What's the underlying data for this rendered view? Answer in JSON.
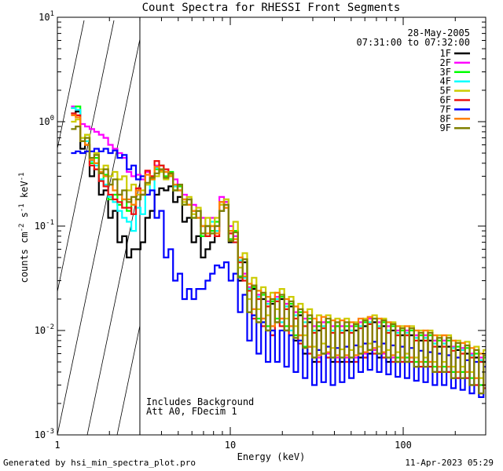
{
  "footer": {
    "generated_by": "Generated by hsi_min_spectra_plot.pro",
    "timestamp": "11-Apr-2023 05:29"
  },
  "chart_data": {
    "type": "line",
    "title": "Count Spectra for RHESSI Front Segments",
    "xlabel": "Energy (keV)",
    "ylabel_parts": {
      "a": "counts cm",
      "b": "-2",
      "c": " s",
      "d": "-1",
      "e": " keV",
      "f": "-1"
    },
    "xscale": "log",
    "yscale": "log",
    "xlim": [
      1,
      300
    ],
    "ylim": [
      0.001,
      10
    ],
    "x_ticks": [
      {
        "value": 1,
        "label": "1"
      },
      {
        "value": 10,
        "label": "10"
      },
      {
        "value": 100,
        "label": "100"
      }
    ],
    "y_ticks": [
      {
        "value": 0.001,
        "base": "10",
        "exp": "-3"
      },
      {
        "value": 0.01,
        "base": "10",
        "exp": "-2"
      },
      {
        "value": 0.1,
        "base": "10",
        "exp": "-1"
      },
      {
        "value": 1,
        "base": "10",
        "exp": "0"
      },
      {
        "value": 10,
        "base": "10",
        "exp": "1"
      }
    ],
    "hatched_region": [
      1,
      3
    ],
    "date": "28-May-2005",
    "time_range": "07:31:00 to 07:32:00",
    "annotations": [
      "Includes Background",
      "Att A0, FDecim 1"
    ],
    "legend_position": "top-right",
    "series": [
      {
        "name": "1F",
        "color": "#000000",
        "lo": [
          1.2,
          0.55,
          0.3,
          0.2,
          0.12,
          0.07,
          0.05,
          0.06,
          0.12,
          0.2,
          0.22,
          0.17,
          0.11,
          0.07,
          0.05,
          0.07,
          0.14,
          0.07,
          0.03,
          0.015,
          0.012,
          0.01,
          0.012,
          0.01,
          0.008,
          0.006,
          0.005,
          0.006,
          0.005,
          0.005,
          0.005,
          0.0055,
          0.006,
          0.0055,
          0.005,
          0.005,
          0.005,
          0.0045,
          0.0045,
          0.004,
          0.004,
          0.0035,
          0.0035,
          0.003,
          0.0025
        ],
        "hi": [
          1.25,
          0.6,
          0.35,
          0.22,
          0.14,
          0.08,
          0.06,
          0.07,
          0.14,
          0.23,
          0.24,
          0.19,
          0.12,
          0.08,
          0.06,
          0.09,
          0.17,
          0.09,
          0.045,
          0.025,
          0.02,
          0.018,
          0.02,
          0.017,
          0.014,
          0.012,
          0.01,
          0.012,
          0.011,
          0.01,
          0.01,
          0.011,
          0.012,
          0.011,
          0.01,
          0.009,
          0.009,
          0.008,
          0.008,
          0.007,
          0.007,
          0.0065,
          0.006,
          0.0055,
          0.005
        ]
      },
      {
        "name": "2F",
        "color": "#ff00ff",
        "lo": [
          1.3,
          0.9,
          0.8,
          0.7,
          0.55,
          0.45,
          0.3,
          0.28,
          0.3,
          0.35,
          0.32,
          0.25,
          0.18,
          0.14,
          0.1,
          0.1,
          0.17,
          0.08,
          0.035,
          0.016,
          0.013,
          0.011,
          0.013,
          0.011,
          0.009,
          0.007,
          0.0055,
          0.006,
          0.0055,
          0.0055,
          0.0055,
          0.006,
          0.0065,
          0.006,
          0.0055,
          0.0055,
          0.0055,
          0.005,
          0.005,
          0.0045,
          0.0045,
          0.004,
          0.004,
          0.0035,
          0.003
        ],
        "hi": [
          1.4,
          0.95,
          0.85,
          0.75,
          0.6,
          0.5,
          0.33,
          0.31,
          0.33,
          0.38,
          0.35,
          0.28,
          0.2,
          0.16,
          0.12,
          0.12,
          0.19,
          0.1,
          0.05,
          0.026,
          0.022,
          0.019,
          0.021,
          0.018,
          0.015,
          0.013,
          0.011,
          0.012,
          0.011,
          0.011,
          0.011,
          0.012,
          0.013,
          0.012,
          0.011,
          0.01,
          0.01,
          0.009,
          0.009,
          0.008,
          0.008,
          0.007,
          0.0068,
          0.006,
          0.0055
        ]
      },
      {
        "name": "3F",
        "color": "#00ff00",
        "lo": [
          1.35,
          0.7,
          0.4,
          0.28,
          0.18,
          0.16,
          0.14,
          0.18,
          0.25,
          0.35,
          0.3,
          0.22,
          0.16,
          0.12,
          0.08,
          0.09,
          0.16,
          0.075,
          0.033,
          0.015,
          0.013,
          0.011,
          0.013,
          0.011,
          0.009,
          0.007,
          0.0055,
          0.006,
          0.0055,
          0.0055,
          0.0055,
          0.006,
          0.0065,
          0.006,
          0.0055,
          0.0055,
          0.0055,
          0.005,
          0.005,
          0.0045,
          0.0045,
          0.004,
          0.004,
          0.0035,
          0.003
        ],
        "hi": [
          1.4,
          0.75,
          0.45,
          0.31,
          0.2,
          0.18,
          0.16,
          0.2,
          0.28,
          0.38,
          0.33,
          0.24,
          0.18,
          0.14,
          0.1,
          0.11,
          0.18,
          0.09,
          0.048,
          0.026,
          0.022,
          0.019,
          0.021,
          0.018,
          0.015,
          0.013,
          0.011,
          0.012,
          0.011,
          0.011,
          0.011,
          0.012,
          0.013,
          0.012,
          0.011,
          0.01,
          0.01,
          0.009,
          0.009,
          0.008,
          0.008,
          0.007,
          0.0068,
          0.006,
          0.0055
        ]
      },
      {
        "name": "4F",
        "color": "#00ffff",
        "lo": [
          1.3,
          0.65,
          0.38,
          0.25,
          0.17,
          0.12,
          0.09,
          0.13,
          0.22,
          0.33,
          0.3,
          0.22,
          0.16,
          0.12,
          0.08,
          0.09,
          0.15,
          0.07,
          0.032,
          0.014,
          0.012,
          0.01,
          0.012,
          0.01,
          0.008,
          0.006,
          0.005,
          0.0055,
          0.005,
          0.005,
          0.005,
          0.0055,
          0.006,
          0.0055,
          0.005,
          0.005,
          0.005,
          0.0045,
          0.0045,
          0.004,
          0.004,
          0.0035,
          0.0035,
          0.003,
          0.0028
        ],
        "hi": [
          1.35,
          0.7,
          0.42,
          0.28,
          0.19,
          0.14,
          0.11,
          0.15,
          0.25,
          0.36,
          0.33,
          0.24,
          0.18,
          0.14,
          0.1,
          0.11,
          0.17,
          0.085,
          0.047,
          0.025,
          0.021,
          0.018,
          0.02,
          0.017,
          0.014,
          0.012,
          0.01,
          0.011,
          0.01,
          0.01,
          0.01,
          0.011,
          0.012,
          0.011,
          0.01,
          0.0095,
          0.0095,
          0.0085,
          0.0085,
          0.0075,
          0.0075,
          0.0068,
          0.0065,
          0.0058,
          0.0052
        ]
      },
      {
        "name": "5F",
        "color": "#cccc00",
        "lo": [
          1.0,
          0.7,
          0.45,
          0.35,
          0.3,
          0.28,
          0.22,
          0.2,
          0.25,
          0.3,
          0.28,
          0.22,
          0.17,
          0.13,
          0.1,
          0.1,
          0.16,
          0.09,
          0.04,
          0.02,
          0.016,
          0.014,
          0.016,
          0.013,
          0.011,
          0.009,
          0.007,
          0.0075,
          0.0068,
          0.0066,
          0.0065,
          0.007,
          0.0075,
          0.007,
          0.0065,
          0.0062,
          0.006,
          0.0055,
          0.0055,
          0.005,
          0.005,
          0.0045,
          0.0045,
          0.004,
          0.0035
        ],
        "hi": [
          1.05,
          0.75,
          0.5,
          0.38,
          0.33,
          0.3,
          0.25,
          0.22,
          0.28,
          0.33,
          0.31,
          0.25,
          0.19,
          0.15,
          0.12,
          0.12,
          0.18,
          0.11,
          0.055,
          0.032,
          0.026,
          0.023,
          0.025,
          0.021,
          0.018,
          0.016,
          0.014,
          0.014,
          0.013,
          0.013,
          0.012,
          0.013,
          0.014,
          0.013,
          0.012,
          0.011,
          0.011,
          0.01,
          0.01,
          0.009,
          0.009,
          0.008,
          0.0078,
          0.007,
          0.0065
        ]
      },
      {
        "name": "6F",
        "color": "#ee1111",
        "lo": [
          1.15,
          0.6,
          0.35,
          0.24,
          0.18,
          0.15,
          0.13,
          0.2,
          0.3,
          0.38,
          0.32,
          0.22,
          0.16,
          0.12,
          0.08,
          0.08,
          0.15,
          0.07,
          0.03,
          0.013,
          0.011,
          0.009,
          0.011,
          0.009,
          0.0075,
          0.006,
          0.005,
          0.0055,
          0.005,
          0.005,
          0.005,
          0.0055,
          0.006,
          0.0055,
          0.005,
          0.005,
          0.005,
          0.0045,
          0.0045,
          0.004,
          0.004,
          0.0035,
          0.0035,
          0.003,
          0.0028
        ],
        "hi": [
          1.2,
          0.65,
          0.38,
          0.27,
          0.2,
          0.17,
          0.15,
          0.23,
          0.34,
          0.42,
          0.35,
          0.25,
          0.18,
          0.14,
          0.1,
          0.1,
          0.17,
          0.085,
          0.045,
          0.024,
          0.02,
          0.017,
          0.019,
          0.016,
          0.013,
          0.011,
          0.0095,
          0.0105,
          0.0095,
          0.0095,
          0.0095,
          0.0105,
          0.0115,
          0.0105,
          0.0095,
          0.009,
          0.009,
          0.008,
          0.008,
          0.007,
          0.007,
          0.0064,
          0.006,
          0.0055,
          0.005
        ]
      },
      {
        "name": "7F",
        "color": "#0000ff",
        "lo": [
          0.5,
          0.5,
          0.52,
          0.52,
          0.5,
          0.45,
          0.35,
          0.28,
          0.2,
          0.12,
          0.05,
          0.03,
          0.02,
          0.02,
          0.025,
          0.035,
          0.04,
          0.03,
          0.015,
          0.008,
          0.006,
          0.005,
          0.005,
          0.0045,
          0.004,
          0.0035,
          0.003,
          0.0032,
          0.003,
          0.0032,
          0.0035,
          0.004,
          0.0042,
          0.004,
          0.0038,
          0.0036,
          0.0035,
          0.0033,
          0.0032,
          0.003,
          0.003,
          0.0028,
          0.0027,
          0.0025,
          0.0023
        ],
        "hi": [
          0.52,
          0.52,
          0.55,
          0.55,
          0.53,
          0.48,
          0.38,
          0.3,
          0.22,
          0.14,
          0.06,
          0.035,
          0.025,
          0.025,
          0.03,
          0.042,
          0.045,
          0.035,
          0.022,
          0.014,
          0.012,
          0.01,
          0.01,
          0.009,
          0.008,
          0.007,
          0.0065,
          0.007,
          0.0068,
          0.007,
          0.0072,
          0.0075,
          0.0078,
          0.0075,
          0.0072,
          0.007,
          0.0068,
          0.0064,
          0.0062,
          0.006,
          0.0058,
          0.0055,
          0.0052,
          0.005,
          0.0045
        ]
      },
      {
        "name": "8F",
        "color": "#ff8000",
        "lo": [
          1.1,
          0.6,
          0.4,
          0.3,
          0.22,
          0.18,
          0.16,
          0.2,
          0.28,
          0.34,
          0.3,
          0.22,
          0.16,
          0.12,
          0.085,
          0.085,
          0.15,
          0.075,
          0.033,
          0.016,
          0.013,
          0.011,
          0.013,
          0.011,
          0.009,
          0.007,
          0.0058,
          0.0062,
          0.0058,
          0.0058,
          0.0058,
          0.0062,
          0.0068,
          0.0062,
          0.0058,
          0.0055,
          0.0055,
          0.005,
          0.005,
          0.0045,
          0.0045,
          0.004,
          0.004,
          0.0035,
          0.003
        ],
        "hi": [
          1.15,
          0.65,
          0.43,
          0.33,
          0.25,
          0.2,
          0.18,
          0.22,
          0.31,
          0.37,
          0.33,
          0.25,
          0.18,
          0.14,
          0.1,
          0.1,
          0.17,
          0.09,
          0.05,
          0.028,
          0.024,
          0.021,
          0.023,
          0.02,
          0.017,
          0.015,
          0.013,
          0.0135,
          0.0125,
          0.0125,
          0.012,
          0.013,
          0.0135,
          0.013,
          0.012,
          0.011,
          0.011,
          0.01,
          0.01,
          0.009,
          0.009,
          0.008,
          0.0076,
          0.0068,
          0.006
        ]
      },
      {
        "name": "9F",
        "color": "#808000",
        "lo": [
          0.85,
          0.65,
          0.45,
          0.32,
          0.25,
          0.2,
          0.17,
          0.18,
          0.26,
          0.32,
          0.29,
          0.22,
          0.16,
          0.12,
          0.085,
          0.085,
          0.14,
          0.072,
          0.032,
          0.015,
          0.012,
          0.01,
          0.012,
          0.01,
          0.0085,
          0.0068,
          0.0055,
          0.006,
          0.0055,
          0.0055,
          0.0055,
          0.006,
          0.0065,
          0.006,
          0.0055,
          0.005,
          0.005,
          0.0045,
          0.0045,
          0.004,
          0.004,
          0.0035,
          0.0035,
          0.003,
          0.0025
        ],
        "hi": [
          0.9,
          0.7,
          0.48,
          0.35,
          0.28,
          0.22,
          0.19,
          0.2,
          0.29,
          0.35,
          0.32,
          0.25,
          0.18,
          0.14,
          0.1,
          0.1,
          0.16,
          0.087,
          0.048,
          0.027,
          0.023,
          0.02,
          0.022,
          0.019,
          0.016,
          0.014,
          0.012,
          0.013,
          0.012,
          0.012,
          0.0115,
          0.0125,
          0.013,
          0.0125,
          0.0115,
          0.0105,
          0.0105,
          0.0095,
          0.0095,
          0.0085,
          0.0085,
          0.0076,
          0.0072,
          0.0065,
          0.0058
        ]
      }
    ]
  }
}
